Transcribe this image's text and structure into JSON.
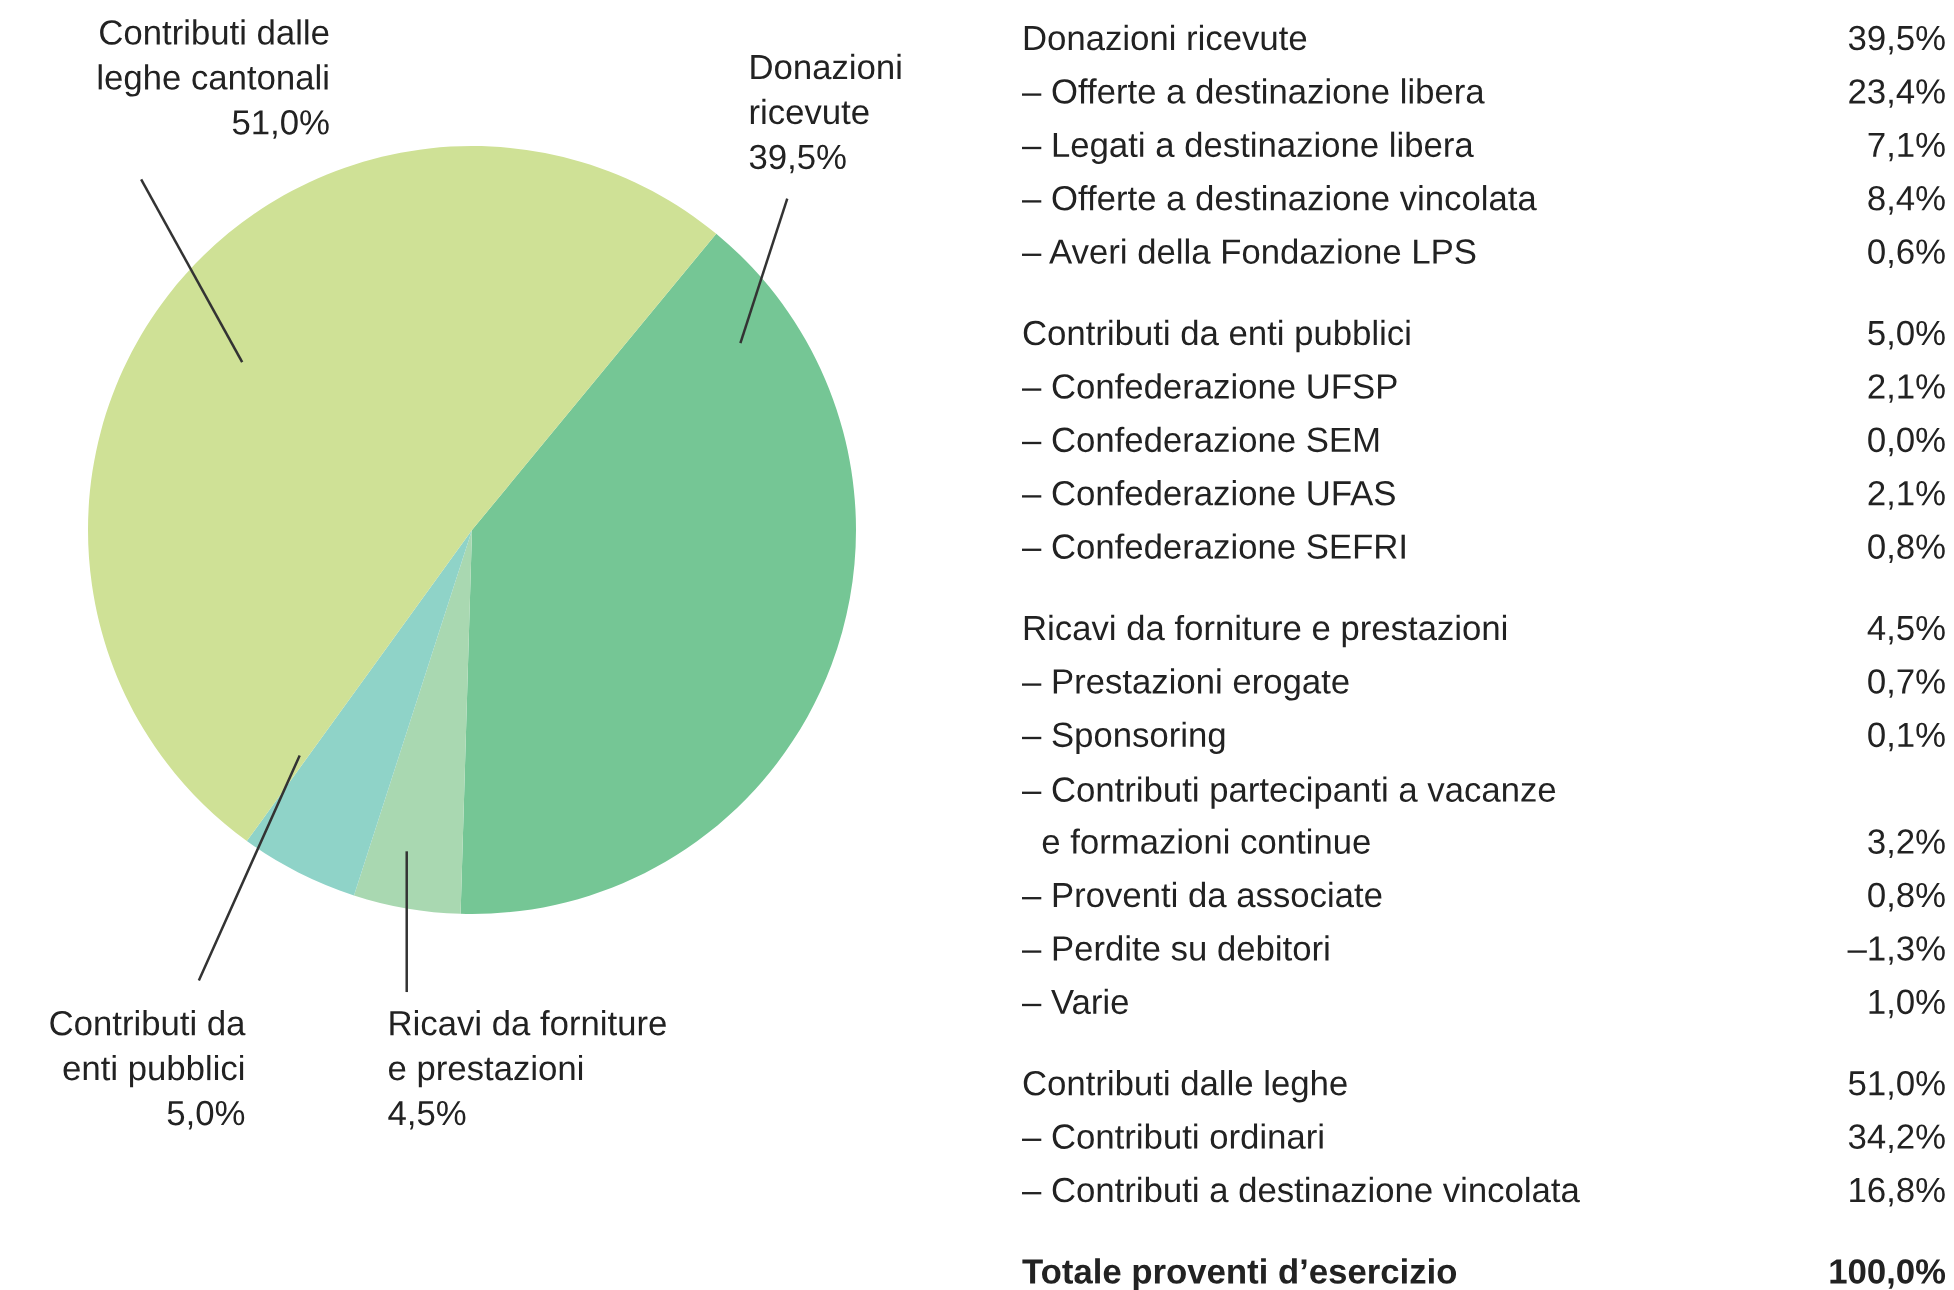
{
  "chart_data": [
    {
      "type": "pie",
      "categories": [
        "Donazioni\nricevute",
        "Ricavi da forniture\ne prestazioni",
        "Contributi da\nenti pubblici",
        "Contributi dalle\nleghe cantonali"
      ],
      "values": [
        39.5,
        4.5,
        5.0,
        51.0
      ],
      "value_labels": [
        "39,5%",
        "4,5%",
        "5,0%",
        "51,0%"
      ],
      "colors": [
        "#75c695",
        "#a9d8b1",
        "#8fd3c8",
        "#cfe196"
      ]
    },
    {
      "type": "other",
      "categories": [
        "Donazioni ricevute",
        "– Offerte a destinazione libera",
        "– Legati a destinazione libera",
        "– Offerte a destinazione vincolata",
        "– Averi della Fondazione LPS"
      ],
      "values": [
        39.5,
        23.4,
        7.1,
        8.4,
        0.6
      ],
      "value_labels": [
        "39,5%",
        "23,4%",
        "7,1%",
        "8,4%",
        "0,6%"
      ]
    },
    {
      "type": "other",
      "categories": [
        "Contributi da enti pubblici",
        "– Confederazione UFSP",
        "– Confederazione SEM",
        "– Confederazione UFAS",
        "– Confederazione SEFRI"
      ],
      "values": [
        5.0,
        2.1,
        0.0,
        2.1,
        0.8
      ],
      "value_labels": [
        "5,0%",
        "2,1%",
        "0,0%",
        "2,1%",
        "0,8%"
      ]
    },
    {
      "type": "other",
      "categories": [
        "Ricavi da forniture e prestazioni",
        "– Prestazioni erogate",
        "– Sponsoring",
        "– Contributi partecipanti a vacanze\n  e formazioni continue",
        "– Proventi da associate",
        "– Perdite su debitori",
        "– Varie"
      ],
      "values": [
        4.5,
        0.7,
        0.1,
        3.2,
        0.8,
        -1.3,
        1.0
      ],
      "value_labels": [
        "4,5%",
        "0,7%",
        "0,1%",
        "3,2%",
        "0,8%",
        "–1,3%",
        "1,0%"
      ]
    },
    {
      "type": "other",
      "categories": [
        "Contributi dalle leghe",
        "– Contributi ordinari",
        "– Contributi a destinazione vincolata"
      ],
      "values": [
        51.0,
        34.2,
        16.8
      ],
      "value_labels": [
        "51,0%",
        "34,2%",
        "16,8%"
      ]
    },
    {
      "type": "other",
      "categories": [
        "Totale proventi d’esercizio"
      ],
      "values": [
        100.0
      ],
      "value_labels": [
        "100,0%"
      ]
    }
  ]
}
